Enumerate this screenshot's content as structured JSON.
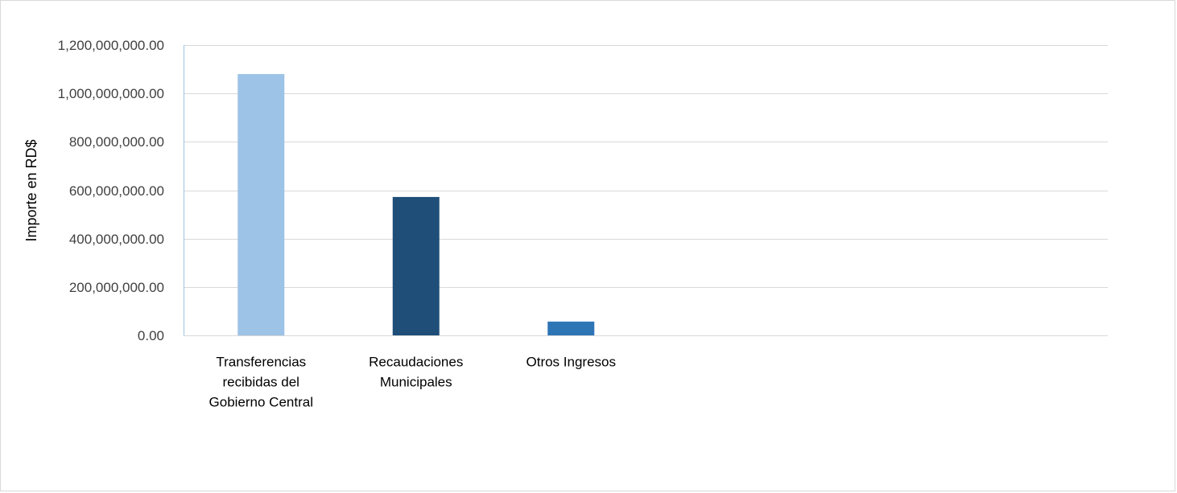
{
  "chart_data": {
    "type": "bar",
    "title": "",
    "xlabel": "",
    "ylabel": "Importe en RD$",
    "ylim": [
      0,
      1200000000
    ],
    "yticks": [
      0,
      200000000,
      400000000,
      600000000,
      800000000,
      1000000000,
      1200000000
    ],
    "ytick_labels": [
      "0.00",
      "200,000,000.00",
      "400,000,000.00",
      "600,000,000.00",
      "800,000,000.00",
      "1,000,000,000.00",
      "1,200,000,000.00"
    ],
    "grid": true,
    "legend": "none",
    "categories": [
      [
        "Transferencias",
        "recibidas del",
        "Gobierno Central"
      ],
      [
        "Recaudaciones",
        "Municipales"
      ],
      [
        "Otros Ingresos"
      ]
    ],
    "values": [
      1080000000,
      572000000,
      57000000
    ],
    "colors": [
      "#9dc3e6",
      "#1f4e79",
      "#2e75b6"
    ],
    "gridline_color": "#d9d9d9",
    "axis_color": "#9dc3e6"
  }
}
